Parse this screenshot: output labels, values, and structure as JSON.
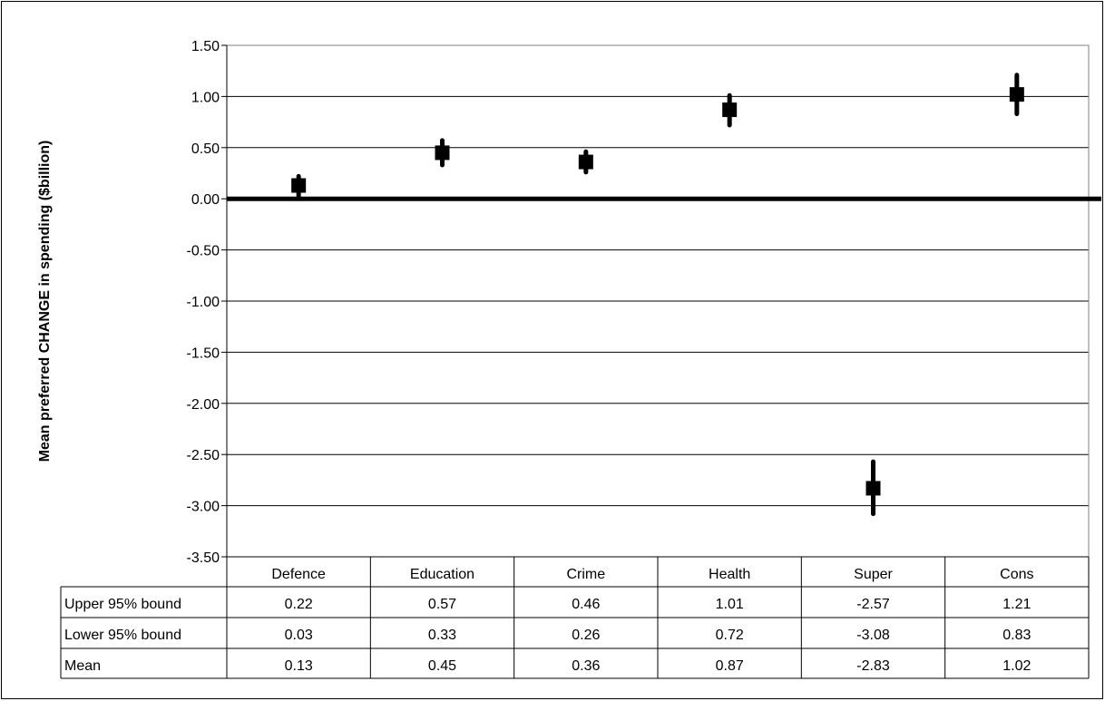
{
  "chart_data": {
    "type": "scatter",
    "title": "",
    "xlabel": "",
    "ylabel": "Mean preferred CHANGE in spending ($billion)",
    "ylim": [
      -3.5,
      1.5
    ],
    "y_ticks": [
      "1.50",
      "1.00",
      "0.50",
      "0.00",
      "-0.50",
      "-1.00",
      "-1.50",
      "-2.00",
      "-2.50",
      "-3.00",
      "-3.50"
    ],
    "y_tick_values": [
      1.5,
      1.0,
      0.5,
      0.0,
      -0.5,
      -1.0,
      -1.5,
      -2.0,
      -2.5,
      -3.0,
      -3.5
    ],
    "grid": true,
    "zero_line": true,
    "categories": [
      "Defence",
      "Education",
      "Crime",
      "Health",
      "Super",
      "Cons"
    ],
    "series": [
      {
        "name": "Upper 95% bound",
        "values": [
          0.22,
          0.57,
          0.46,
          1.01,
          -2.57,
          1.21
        ]
      },
      {
        "name": "Lower 95% bound",
        "values": [
          0.03,
          0.33,
          0.26,
          0.72,
          -3.08,
          0.83
        ]
      },
      {
        "name": "Mean",
        "values": [
          0.13,
          0.45,
          0.36,
          0.87,
          -2.83,
          1.02
        ]
      }
    ],
    "table_cells": [
      [
        "0.22",
        "0.57",
        "0.46",
        "1.01",
        "-2.57",
        "1.21"
      ],
      [
        "0.03",
        "0.33",
        "0.26",
        "0.72",
        "-3.08",
        "0.83"
      ],
      [
        "0.13",
        "0.45",
        "0.36",
        "0.87",
        "-2.83",
        "1.02"
      ]
    ],
    "colors": {
      "marker": "#000000",
      "gridline": "#000000",
      "plot_border": "#808080"
    }
  }
}
